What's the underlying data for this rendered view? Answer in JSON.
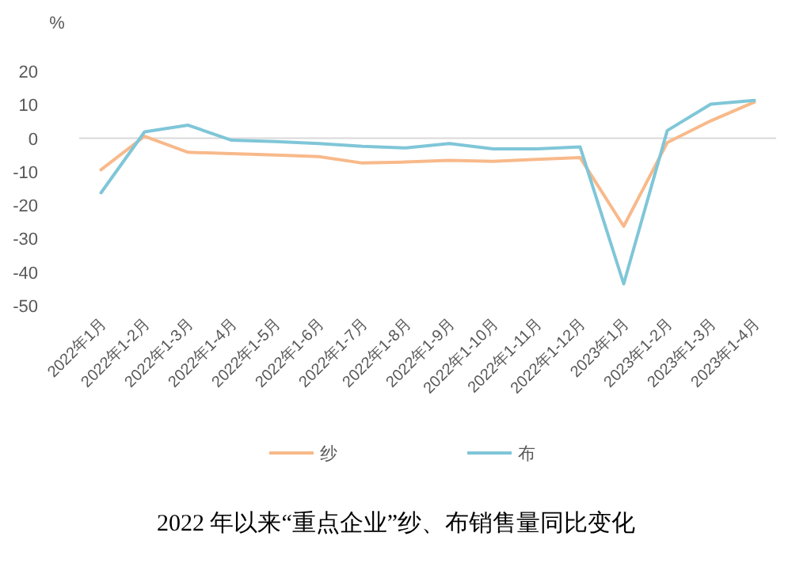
{
  "chart_data": {
    "type": "line",
    "title": "2022 年以来“重点企业”纱、布销售量同比变化",
    "ylabel": "%",
    "categories": [
      "2022年1月",
      "2022年1-2月",
      "2022年1-3月",
      "2022年1-4月",
      "2022年1-5月",
      "2022年1-6月",
      "2022年1-7月",
      "2022年1-8月",
      "2022年1-9月",
      "2022年1-10月",
      "2022年1-11月",
      "2022年1-12月",
      "2023年1月",
      "2023年1-2月",
      "2023年1-3月",
      "2023年1-4月"
    ],
    "series": [
      {
        "name": "纱",
        "color": "#f8b98a",
        "values": [
          -9.4,
          0.6,
          -4.2,
          -4.6,
          -5.0,
          -5.5,
          -7.4,
          -7.1,
          -6.6,
          -6.9,
          -6.3,
          -5.8,
          -26.3,
          -1.3,
          5.2,
          10.8
        ]
      },
      {
        "name": "布",
        "color": "#7fc6d8",
        "values": [
          -16.3,
          1.9,
          3.9,
          -0.6,
          -1.0,
          -1.6,
          -2.4,
          -2.9,
          -1.6,
          -3.2,
          -3.2,
          -2.6,
          -43.5,
          2.3,
          10.2,
          11.3
        ]
      }
    ],
    "ylim": [
      -50,
      20
    ],
    "yticks": [
      -50,
      -40,
      -30,
      -20,
      -10,
      0,
      10,
      20
    ],
    "legend": "bottom"
  }
}
